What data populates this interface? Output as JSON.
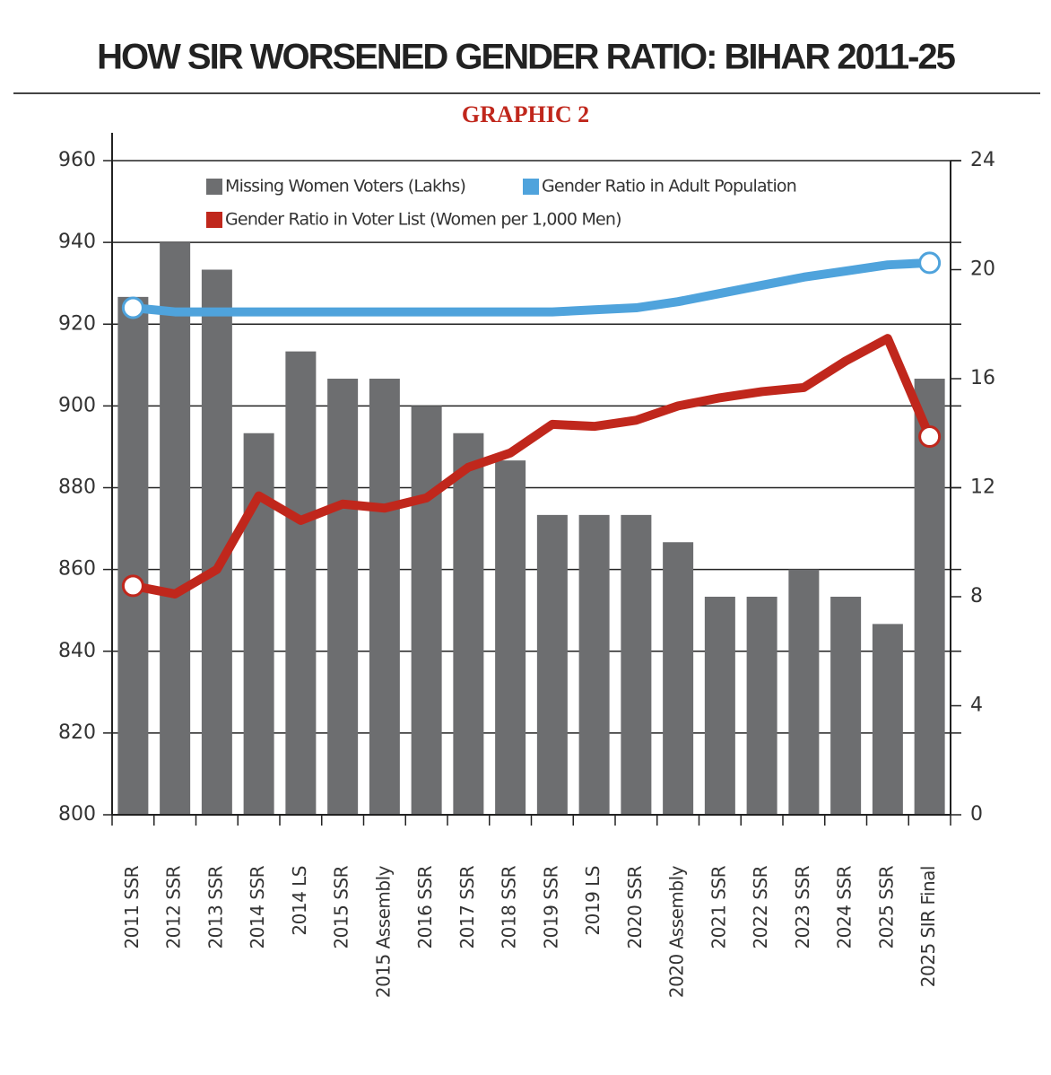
{
  "chart_data": {
    "type": "bar",
    "title": "HOW SIR WORSENED GENDER RATIO: BIHAR 2011-25",
    "subtitle": "GRAPHIC 2",
    "categories": [
      "2011 SSR",
      "2012 SSR",
      "2013 SSR",
      "2014 SSR",
      "2014 LS",
      "2015 SSR",
      "2015 Assembly",
      "2016 SSR",
      "2017 SSR",
      "2018 SSR",
      "2019 SSR",
      "2019 LS",
      "2020 SSR",
      "2020 Assembly",
      "2021 SSR",
      "2022 SSR",
      "2023 SSR",
      "2024 SSR",
      "2025 SSR",
      "2025 SIR Final"
    ],
    "series": [
      {
        "name": "Missing Women Voters (Lakhs)",
        "type": "bar",
        "axis": "y2",
        "color": "#6d6e70",
        "values": [
          19,
          21,
          20,
          14,
          17,
          16,
          16,
          15,
          14,
          13,
          11,
          11,
          11,
          10,
          8,
          8,
          9,
          8,
          7,
          16
        ]
      },
      {
        "name": "Gender Ratio in Adult Population",
        "type": "line",
        "color": "#4fa3dc",
        "values": [
          924,
          923,
          923,
          923,
          923,
          923,
          923,
          923,
          923,
          923,
          923,
          923.5,
          924,
          925.5,
          927.5,
          929.5,
          931.5,
          933,
          934.5,
          935
        ]
      },
      {
        "name": "Gender Ratio in Voter List (Women per 1,000 Men)",
        "type": "line",
        "color": "#c0271c",
        "values": [
          856,
          854,
          860,
          878,
          872,
          876,
          875,
          877.5,
          885,
          888.5,
          895.5,
          895,
          896.5,
          900,
          902,
          903.5,
          904.5,
          911,
          916.5,
          892.5
        ]
      }
    ],
    "ylim": [
      800,
      960
    ],
    "yticks": [
      800,
      820,
      840,
      860,
      880,
      900,
      920,
      940,
      960
    ],
    "y2lim": [
      0,
      24
    ],
    "y2ticks": [
      0,
      4,
      8,
      12,
      16,
      20,
      24
    ],
    "grid": true
  }
}
